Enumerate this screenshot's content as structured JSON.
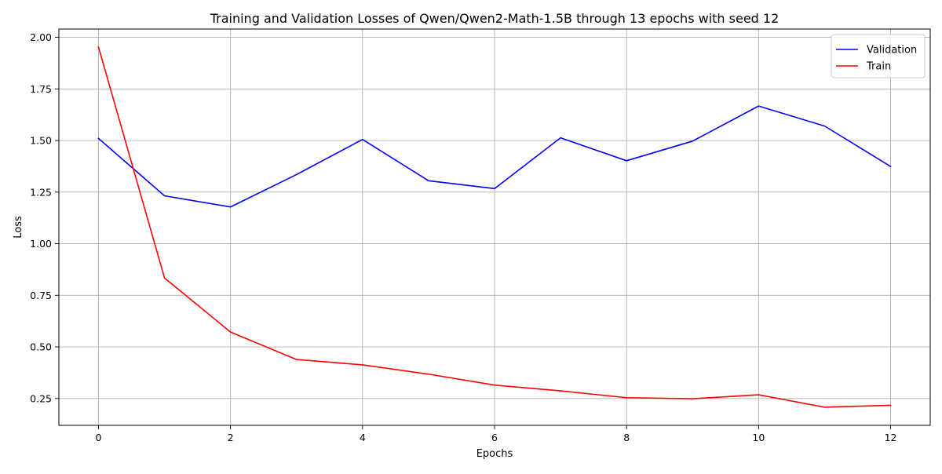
{
  "chart_data": {
    "type": "line",
    "title": "Training and Validation Losses of Qwen/Qwen2-Math-1.5B through 13 epochs with seed 12",
    "xlabel": "Epochs",
    "ylabel": "Loss",
    "x": [
      0,
      1,
      2,
      3,
      4,
      5,
      6,
      7,
      8,
      9,
      10,
      11,
      12
    ],
    "xlim": [
      -0.6,
      12.6
    ],
    "ylim": [
      0.12,
      2.04
    ],
    "xticks": [
      0,
      2,
      4,
      6,
      8,
      10,
      12
    ],
    "xtick_labels": [
      "0",
      "2",
      "4",
      "6",
      "8",
      "10",
      "12"
    ],
    "yticks": [
      0.25,
      0.5,
      0.75,
      1.0,
      1.25,
      1.5,
      1.75,
      2.0
    ],
    "ytick_labels": [
      "0.25",
      "0.50",
      "0.75",
      "1.00",
      "1.25",
      "1.50",
      "1.75",
      "2.00"
    ],
    "grid": true,
    "legend_position": "top-right",
    "series": [
      {
        "name": "Validation",
        "color": "#0000ff",
        "values": [
          1.51,
          1.232,
          1.178,
          1.335,
          1.505,
          1.305,
          1.267,
          1.513,
          1.402,
          1.497,
          1.667,
          1.57,
          1.374
        ]
      },
      {
        "name": "Train",
        "color": "#ff0000",
        "values": [
          1.953,
          0.834,
          0.572,
          0.439,
          0.413,
          0.368,
          0.315,
          0.287,
          0.254,
          0.249,
          0.268,
          0.208,
          0.217
        ]
      }
    ]
  }
}
